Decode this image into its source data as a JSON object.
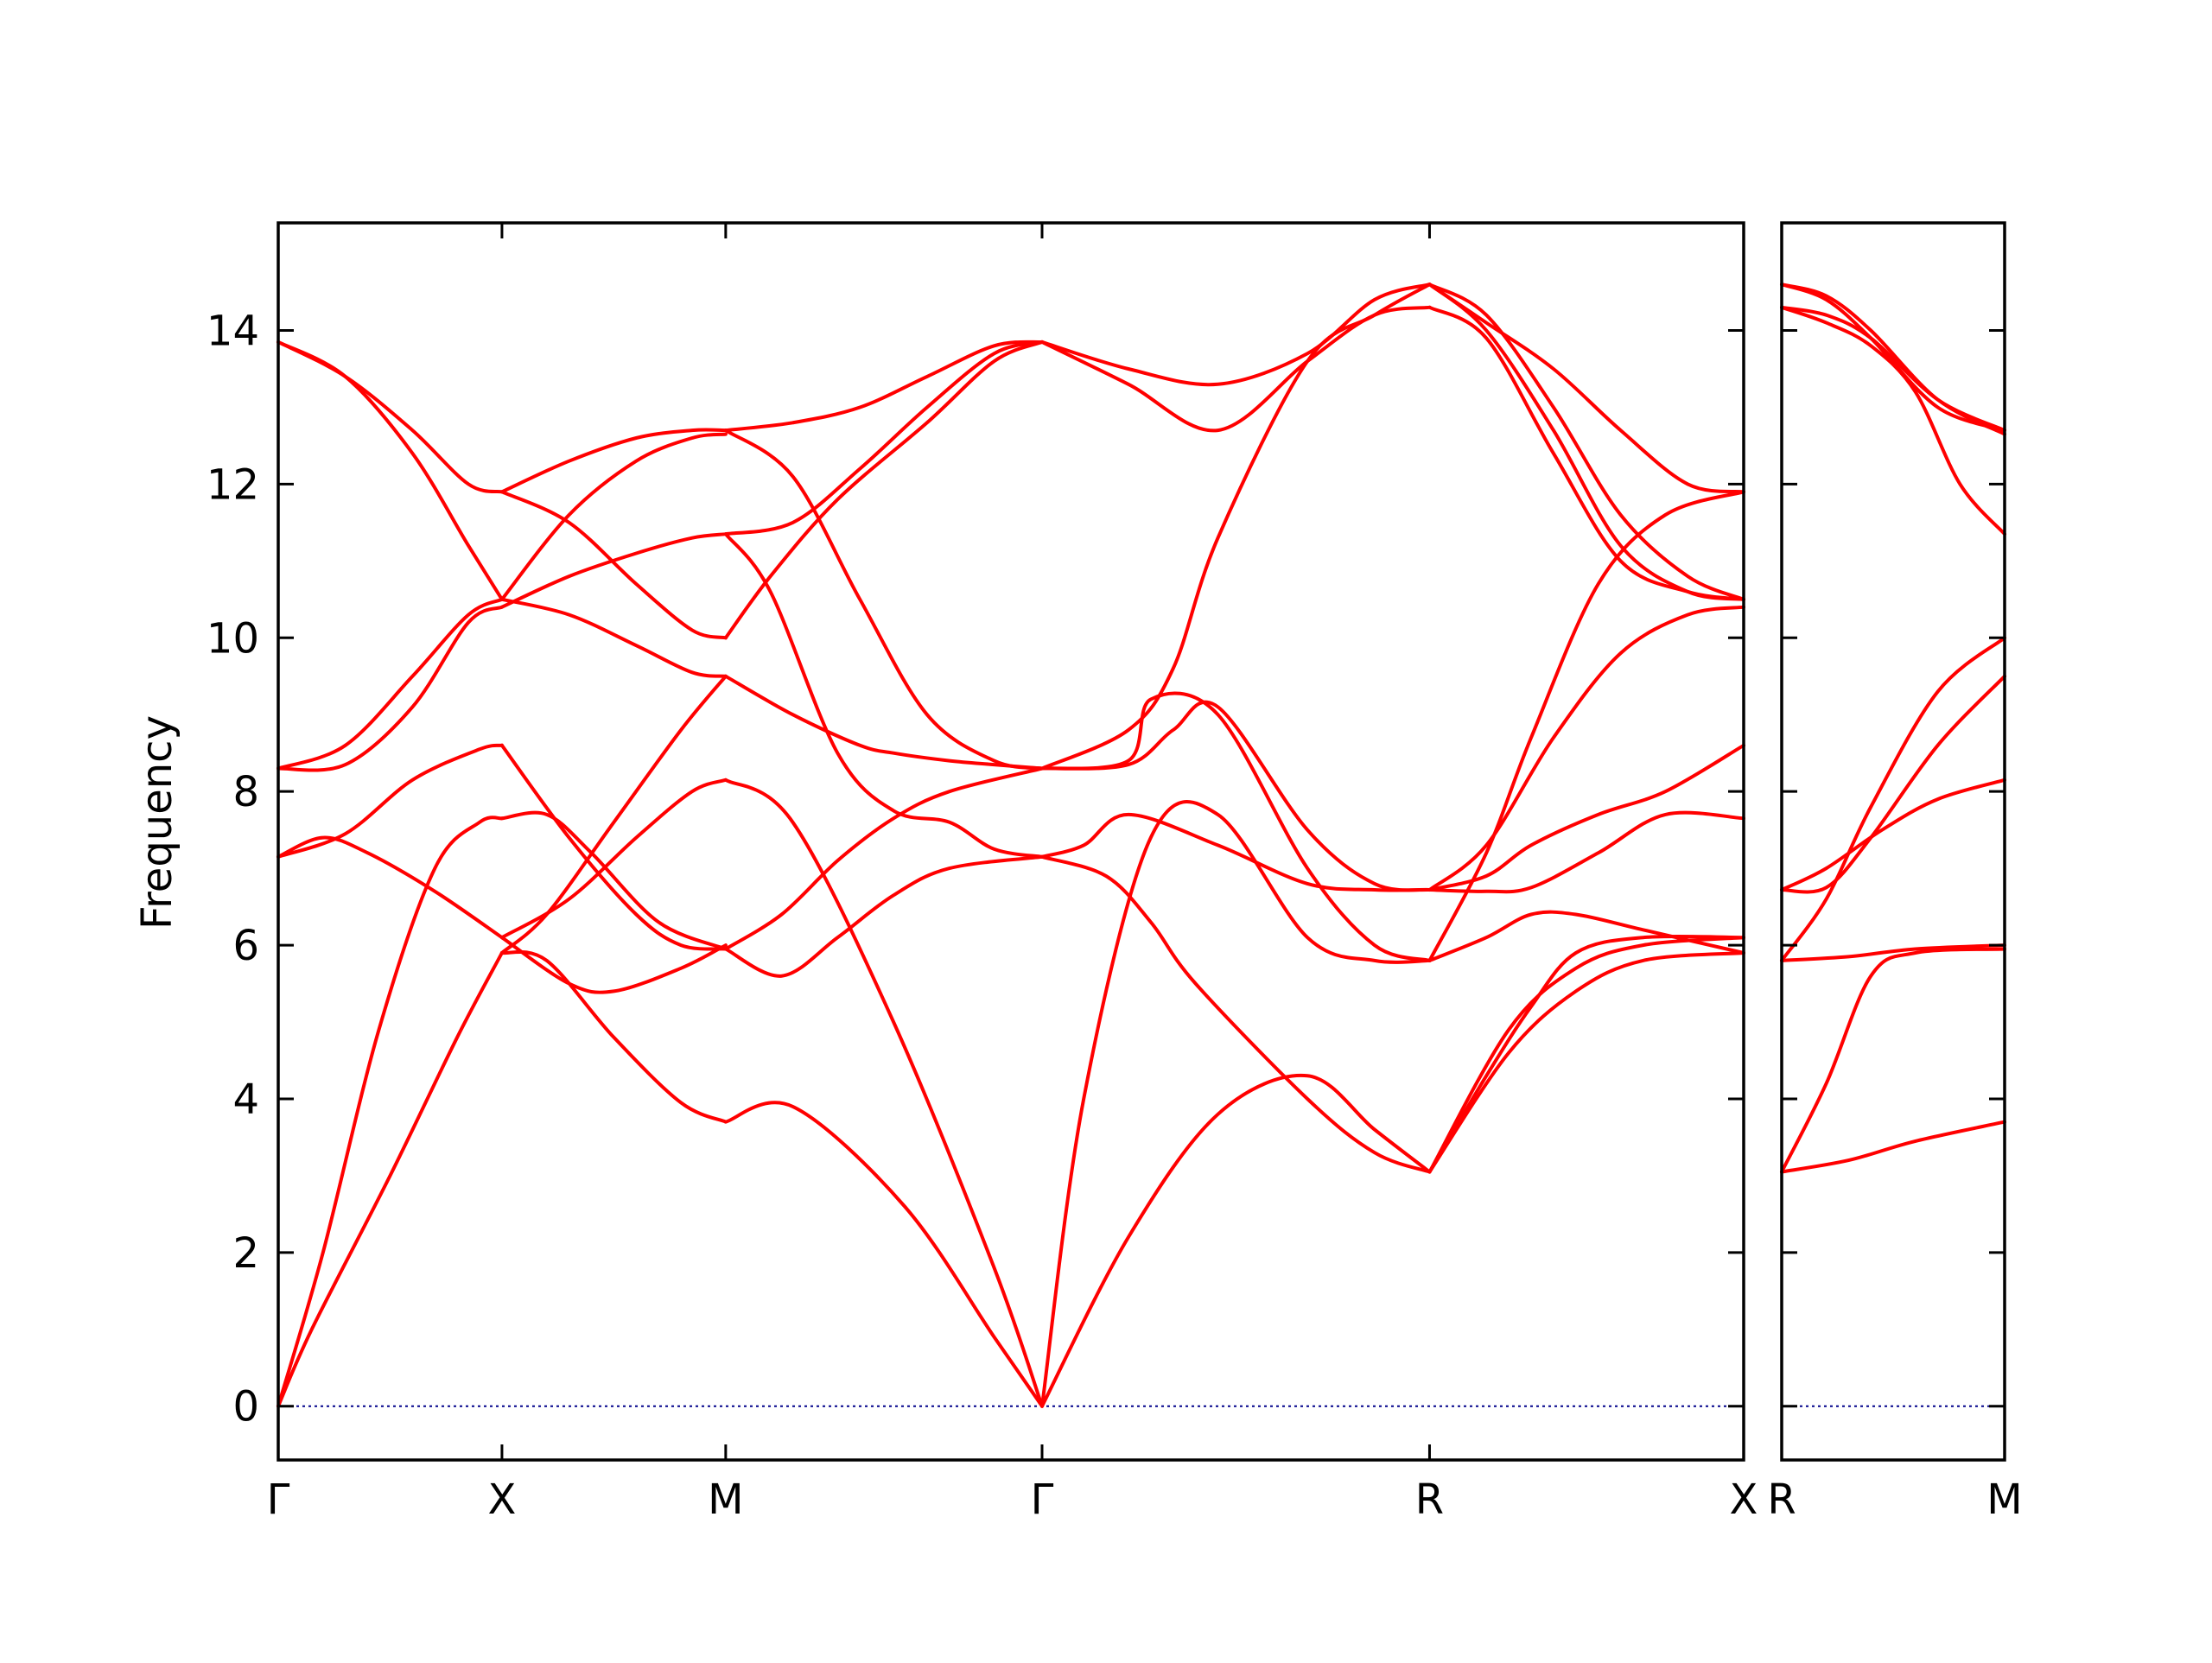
{
  "chart_data": {
    "type": "line",
    "ylabel": "Frequency",
    "ylim": [
      -0.7,
      15.4
    ],
    "yticks": [
      0,
      2,
      4,
      6,
      8,
      10,
      12,
      14
    ],
    "grid": false,
    "legend": "none",
    "colors": {
      "bands": "#ff0000",
      "zero_line": "#00008b",
      "frame": "#000000"
    },
    "panels": [
      {
        "name": "left",
        "xlim": [
          0,
          6.55
        ],
        "labels": [
          {
            "text": "Γ",
            "x": 0
          },
          {
            "text": "X",
            "x": 1.0
          },
          {
            "text": "M",
            "x": 2.0
          },
          {
            "text": "Γ",
            "x": 3.414
          },
          {
            "text": "R",
            "x": 5.146
          },
          {
            "text": "X",
            "x": 6.55
          }
        ],
        "series": [
          {
            "x": [
              0,
              0.15,
              0.5,
              0.8,
              1.0
            ],
            "values": [
              0.0,
              1.0,
              3.0,
              4.8,
              5.9
            ]
          },
          {
            "x": [
              0,
              0.2,
              0.45,
              0.7,
              0.9,
              1.0
            ],
            "values": [
              0.0,
              2.0,
              4.9,
              7.0,
              7.6,
              7.65
            ]
          },
          {
            "x": [
              0,
              0.3,
              0.6,
              0.9,
              1.0
            ],
            "values": [
              7.15,
              7.45,
              8.15,
              8.55,
              8.6
            ]
          },
          {
            "x": [
              0,
              0.2,
              0.4,
              0.7,
              1.0
            ],
            "values": [
              7.15,
              7.4,
              7.2,
              6.7,
              6.1
            ]
          },
          {
            "x": [
              0,
              0.3,
              0.6,
              0.85,
              1.0
            ],
            "values": [
              8.3,
              8.35,
              9.1,
              10.2,
              10.4
            ]
          },
          {
            "x": [
              0,
              0.3,
              0.6,
              0.85,
              1.0
            ],
            "values": [
              8.3,
              8.6,
              9.5,
              10.3,
              10.5
            ]
          },
          {
            "x": [
              0,
              0.3,
              0.6,
              0.85,
              1.0
            ],
            "values": [
              13.85,
              13.4,
              12.4,
              11.2,
              10.5
            ]
          },
          {
            "x": [
              0,
              0.3,
              0.6,
              0.85,
              1.0
            ],
            "values": [
              13.85,
              13.4,
              12.7,
              12.0,
              11.9
            ]
          },
          {
            "x": [
              1.0,
              1.2,
              1.5,
              1.8,
              2.0
            ],
            "values": [
              5.9,
              5.8,
              4.8,
              3.95,
              3.7
            ]
          },
          {
            "x": [
              1.0,
              1.3,
              1.5,
              1.8,
              2.0
            ],
            "values": [
              6.1,
              5.5,
              5.4,
              5.7,
              6.0
            ]
          },
          {
            "x": [
              1.0,
              1.2,
              1.5,
              1.8,
              2.0
            ],
            "values": [
              5.9,
              6.4,
              7.6,
              8.8,
              9.5
            ]
          },
          {
            "x": [
              1.0,
              1.2,
              1.4,
              1.7,
              2.0
            ],
            "values": [
              7.65,
              7.7,
              7.2,
              6.3,
              5.95
            ]
          },
          {
            "x": [
              1.0,
              1.3,
              1.6,
              1.8,
              2.0
            ],
            "values": [
              8.6,
              7.4,
              6.4,
              6.0,
              5.95
            ]
          },
          {
            "x": [
              1.0,
              1.3,
              1.6,
              1.85,
              2.0
            ],
            "values": [
              6.1,
              6.6,
              7.4,
              8.0,
              8.15
            ]
          },
          {
            "x": [
              1.0,
              1.3,
              1.6,
              1.85,
              2.0
            ],
            "values": [
              10.5,
              10.3,
              9.9,
              9.55,
              9.5
            ]
          },
          {
            "x": [
              1.0,
              1.3,
              1.6,
              1.85,
              2.0
            ],
            "values": [
              10.4,
              10.8,
              11.1,
              11.3,
              11.35
            ]
          },
          {
            "x": [
              1.0,
              1.3,
              1.6,
              1.85,
              2.0
            ],
            "values": [
              10.5,
              11.6,
              12.3,
              12.6,
              12.65
            ]
          },
          {
            "x": [
              1.0,
              1.3,
              1.6,
              1.85,
              2.0
            ],
            "values": [
              11.9,
              11.5,
              10.7,
              10.1,
              10.0
            ]
          },
          {
            "x": [
              1.0,
              1.3,
              1.6,
              1.85,
              2.0
            ],
            "values": [
              11.9,
              12.3,
              12.6,
              12.7,
              12.7
            ]
          },
          {
            "x": [
              2.0,
              2.3,
              2.8,
              3.2,
              3.414
            ],
            "values": [
              3.7,
              3.9,
              2.6,
              0.9,
              0.0
            ]
          },
          {
            "x": [
              2.0,
              2.25,
              2.5,
              2.75,
              3.0,
              3.414
            ],
            "values": [
              5.95,
              5.6,
              6.1,
              6.65,
              7.0,
              7.15
            ]
          },
          {
            "x": [
              2.0,
              2.25,
              2.5,
              2.75,
              3.0,
              3.414
            ],
            "values": [
              5.95,
              6.4,
              7.1,
              7.65,
              8.0,
              8.3
            ]
          },
          {
            "x": [
              2.0,
              2.3,
              2.75,
              3.2,
              3.414
            ],
            "values": [
              8.15,
              7.6,
              5.0,
              1.8,
              0.0
            ]
          },
          {
            "x": [
              2.0,
              2.3,
              2.6,
              2.75,
              3.0,
              3.2,
              3.414
            ],
            "values": [
              9.5,
              9.0,
              8.6,
              8.5,
              8.4,
              8.35,
              8.3
            ]
          },
          {
            "x": [
              2.0,
              2.2,
              2.5,
              2.75,
              3.0,
              3.2,
              3.414
            ],
            "values": [
              11.35,
              10.6,
              8.5,
              7.75,
              7.6,
              7.25,
              7.15
            ]
          },
          {
            "x": [
              2.0,
              2.2,
              2.5,
              2.9,
              3.2,
              3.414
            ],
            "values": [
              10.0,
              10.8,
              11.8,
              12.8,
              13.6,
              13.85
            ]
          },
          {
            "x": [
              2.0,
              2.3,
              2.6,
              2.9,
              3.2,
              3.414
            ],
            "values": [
              12.7,
              12.1,
              10.5,
              9.0,
              8.4,
              8.3
            ]
          },
          {
            "x": [
              2.0,
              2.3,
              2.6,
              2.9,
              3.2,
              3.414
            ],
            "values": [
              12.7,
              12.8,
              13.0,
              13.4,
              13.8,
              13.85
            ]
          },
          {
            "x": [
              2.0,
              2.3,
              2.6,
              2.9,
              3.2,
              3.414
            ],
            "values": [
              11.35,
              11.5,
              12.2,
              13.0,
              13.7,
              13.85
            ]
          },
          {
            "x": [
              3.414,
              3.8,
              4.2,
              4.6,
              4.9,
              5.146
            ],
            "values": [
              0.0,
              2.2,
              3.8,
              4.3,
              3.6,
              3.05
            ]
          },
          {
            "x": [
              3.414,
              3.6,
              3.9,
              4.2,
              4.6,
              4.9,
              5.146
            ],
            "values": [
              0.0,
              4.0,
              7.4,
              7.7,
              6.1,
              5.8,
              5.8
            ]
          },
          {
            "x": [
              3.414,
              3.7,
              3.9,
              4.1,
              4.6,
              4.9,
              5.146
            ],
            "values": [
              7.15,
              6.9,
              6.3,
              5.5,
              4.0,
              3.3,
              3.05
            ]
          },
          {
            "x": [
              3.414,
              3.6,
              3.8,
              4.2,
              4.6,
              4.9,
              5.146
            ],
            "values": [
              7.15,
              7.3,
              7.7,
              7.3,
              6.8,
              6.72,
              6.72
            ]
          },
          {
            "x": [
              3.414,
              3.8,
              4.0,
              4.2,
              4.6,
              4.9,
              5.146
            ],
            "values": [
              8.3,
              8.35,
              8.8,
              9.1,
              7.5,
              6.8,
              6.72
            ]
          },
          {
            "x": [
              3.414,
              3.8,
              3.9,
              4.2,
              4.6,
              4.9,
              5.146
            ],
            "values": [
              8.3,
              8.4,
              9.2,
              9.0,
              7.0,
              6.0,
              5.8
            ]
          },
          {
            "x": [
              3.414,
              3.8,
              4.2,
              4.6,
              4.9,
              5.146
            ],
            "values": [
              13.85,
              13.5,
              13.3,
              13.7,
              14.4,
              14.6
            ]
          },
          {
            "x": [
              3.414,
              3.8,
              4.2,
              4.6,
              4.9,
              5.146
            ],
            "values": [
              13.85,
              13.3,
              12.7,
              13.6,
              14.2,
              14.3
            ]
          },
          {
            "x": [
              3.414,
              3.8,
              4.0,
              4.2,
              4.6,
              4.9,
              5.146
            ],
            "values": [
              8.3,
              8.8,
              9.6,
              11.3,
              13.6,
              14.2,
              14.6
            ]
          },
          {
            "x": [
              5.146,
              5.5,
              5.8,
              6.1,
              6.55
            ],
            "values": [
              3.05,
              4.6,
              5.4,
              5.8,
              5.9
            ]
          },
          {
            "x": [
              5.146,
              5.5,
              5.8,
              6.1,
              6.55
            ],
            "values": [
              3.05,
              4.9,
              5.7,
              6.0,
              6.1
            ]
          },
          {
            "x": [
              5.146,
              5.4,
              5.6,
              5.8,
              6.1,
              6.55
            ],
            "values": [
              3.05,
              4.3,
              5.2,
              5.9,
              6.1,
              6.1
            ]
          },
          {
            "x": [
              5.146,
              5.4,
              5.6,
              5.8,
              6.1,
              6.55
            ],
            "values": [
              5.8,
              6.1,
              6.4,
              6.4,
              6.2,
              5.9
            ]
          },
          {
            "x": [
              5.146,
              5.4,
              5.6,
              5.9,
              6.2,
              6.55
            ],
            "values": [
              6.72,
              6.7,
              6.75,
              7.2,
              7.7,
              7.65
            ]
          },
          {
            "x": [
              5.146,
              5.4,
              5.6,
              5.9,
              6.2,
              6.55
            ],
            "values": [
              6.72,
              6.9,
              7.3,
              7.7,
              8.0,
              8.6
            ]
          },
          {
            "x": [
              5.146,
              5.4,
              5.7,
              6.0,
              6.3,
              6.55
            ],
            "values": [
              6.72,
              7.3,
              8.7,
              9.8,
              10.3,
              10.4
            ]
          },
          {
            "x": [
              5.146,
              5.4,
              5.6,
              5.9,
              6.2,
              6.55
            ],
            "values": [
              5.8,
              7.2,
              8.7,
              10.7,
              11.6,
              11.9
            ]
          },
          {
            "x": [
              5.146,
              5.4,
              5.7,
              6.0,
              6.3,
              6.55
            ],
            "values": [
              14.6,
              14.1,
              13.5,
              12.7,
              12.0,
              11.9
            ]
          },
          {
            "x": [
              5.146,
              5.4,
              5.7,
              6.0,
              6.3,
              6.55
            ],
            "values": [
              14.6,
              14.2,
              13.0,
              11.6,
              10.8,
              10.5
            ]
          },
          {
            "x": [
              5.146,
              5.4,
              5.7,
              6.0,
              6.3,
              6.55
            ],
            "values": [
              14.6,
              14.0,
              12.7,
              11.2,
              10.6,
              10.5
            ]
          },
          {
            "x": [
              5.146,
              5.4,
              5.7,
              6.0,
              6.3,
              6.55
            ],
            "values": [
              14.3,
              13.9,
              12.4,
              11.0,
              10.6,
              10.5
            ]
          }
        ]
      },
      {
        "name": "right",
        "xlim": [
          0,
          1
        ],
        "labels": [
          {
            "text": "R",
            "x": 0
          },
          {
            "text": "M",
            "x": 1
          }
        ],
        "series": [
          {
            "x": [
              0,
              0.3,
              0.6,
              1.0
            ],
            "values": [
              3.05,
              3.2,
              3.45,
              3.7
            ]
          },
          {
            "x": [
              0,
              0.2,
              0.4,
              0.6,
              1.0
            ],
            "values": [
              3.05,
              4.2,
              5.6,
              5.9,
              5.95
            ]
          },
          {
            "x": [
              0,
              0.3,
              0.6,
              1.0
            ],
            "values": [
              5.8,
              5.85,
              5.95,
              6.0
            ]
          },
          {
            "x": [
              0,
              0.2,
              0.4,
              0.7,
              1.0
            ],
            "values": [
              5.8,
              6.6,
              7.8,
              9.3,
              10.0
            ]
          },
          {
            "x": [
              0,
              0.2,
              0.4,
              0.7,
              1.0
            ],
            "values": [
              6.72,
              6.75,
              7.4,
              8.6,
              9.5
            ]
          },
          {
            "x": [
              0,
              0.2,
              0.45,
              0.7,
              1.0
            ],
            "values": [
              6.72,
              7.0,
              7.5,
              7.9,
              8.15
            ]
          },
          {
            "x": [
              0,
              0.2,
              0.4,
              0.6,
              0.8,
              1.0
            ],
            "values": [
              14.3,
              14.1,
              13.8,
              13.2,
              12.0,
              11.35
            ]
          },
          {
            "x": [
              0,
              0.2,
              0.4,
              0.7,
              1.0
            ],
            "values": [
              14.3,
              14.2,
              13.9,
              13.1,
              12.7
            ]
          },
          {
            "x": [
              0,
              0.2,
              0.4,
              0.7,
              1.0
            ],
            "values": [
              14.6,
              14.4,
              13.9,
              13.0,
              12.7
            ]
          },
          {
            "x": [
              0,
              0.2,
              0.4,
              0.7,
              1.0
            ],
            "values": [
              14.6,
              14.45,
              14.0,
              13.1,
              12.65
            ]
          }
        ]
      }
    ]
  }
}
